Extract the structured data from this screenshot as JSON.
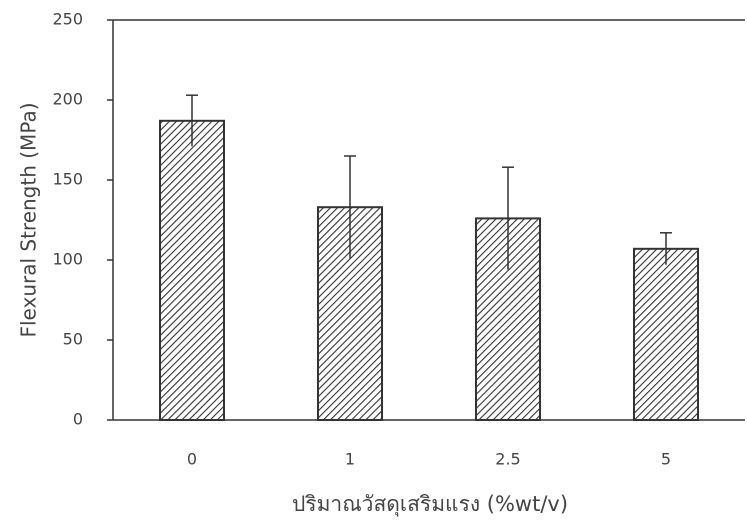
{
  "chart_data": {
    "type": "bar",
    "x_label": "ปริมาณวัสดุเสริมแรง (%wt/v)",
    "y_label": "Flexural Strength (MPa)",
    "categories": [
      "0",
      "1",
      "2.5",
      "5"
    ],
    "values": [
      187,
      133,
      126,
      107
    ],
    "errors": [
      16,
      32,
      32,
      10
    ],
    "color": "#333333",
    "ylim": [
      0,
      250
    ],
    "yticks": [
      0,
      50,
      100,
      150,
      200,
      250
    ],
    "grid": false
  }
}
